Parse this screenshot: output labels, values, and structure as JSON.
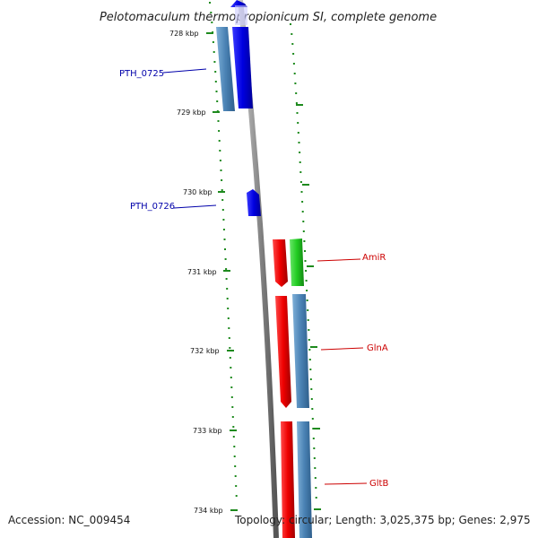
{
  "title": "Pelotomaculum thermopropionicum SI, complete genome",
  "footer": {
    "accession": "Accession: NC_009454",
    "topology": "Topology: circular; Length: 3,025,375 bp; Genes: 2,975"
  },
  "ticks": [
    "728 kbp",
    "729 kbp",
    "730 kbp",
    "731 kbp",
    "732 kbp",
    "733 kbp",
    "734 kbp"
  ],
  "gene_labels": [
    {
      "name": "PTH_0725",
      "color": "#0000aa"
    },
    {
      "name": "PTH_0726",
      "color": "#0000aa"
    },
    {
      "name": "AmiR",
      "color": "#cc0000"
    },
    {
      "name": "GlnA",
      "color": "#cc0000"
    },
    {
      "name": "GltB",
      "color": "#cc0000"
    }
  ],
  "colors": {
    "backbone": "#8c8c8c",
    "tick": "#1e8a1e",
    "blue_feature": "#0a0aee",
    "steel_feature": "#4f86b6",
    "red_feature": "#ee0a0a",
    "green_feature": "#2fcc2f"
  }
}
